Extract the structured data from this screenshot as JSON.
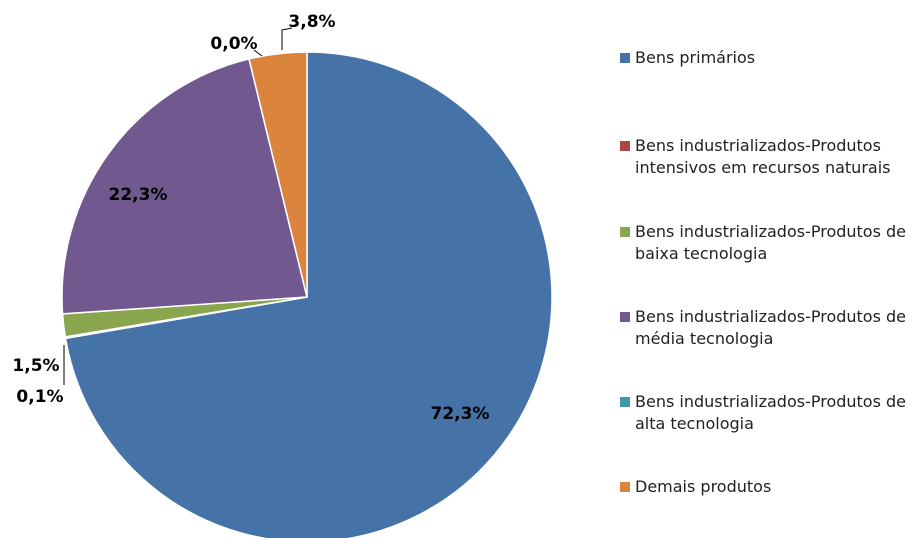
{
  "chart_data": {
    "type": "pie",
    "categories": [
      "Bens primários",
      "Bens industrializados-Produtos intensivos em recursos naturais",
      "Bens industrializados-Produtos de baixa tecnologia",
      "Bens industrializados-Produtos de média tecnologia",
      "Bens industrializados-Produtos de alta tecnologia",
      "Demais produtos"
    ],
    "values": [
      72.3,
      0.1,
      1.5,
      22.3,
      0.0,
      3.8
    ],
    "value_labels": [
      "72,3%",
      "0,1%",
      "1,5%",
      "22,3%",
      "0,0%",
      "3,8%"
    ],
    "colors": [
      "#4572a7",
      "#aa4643",
      "#89a54e",
      "#71588f",
      "#4198af",
      "#db843d"
    ],
    "legend": "right"
  }
}
